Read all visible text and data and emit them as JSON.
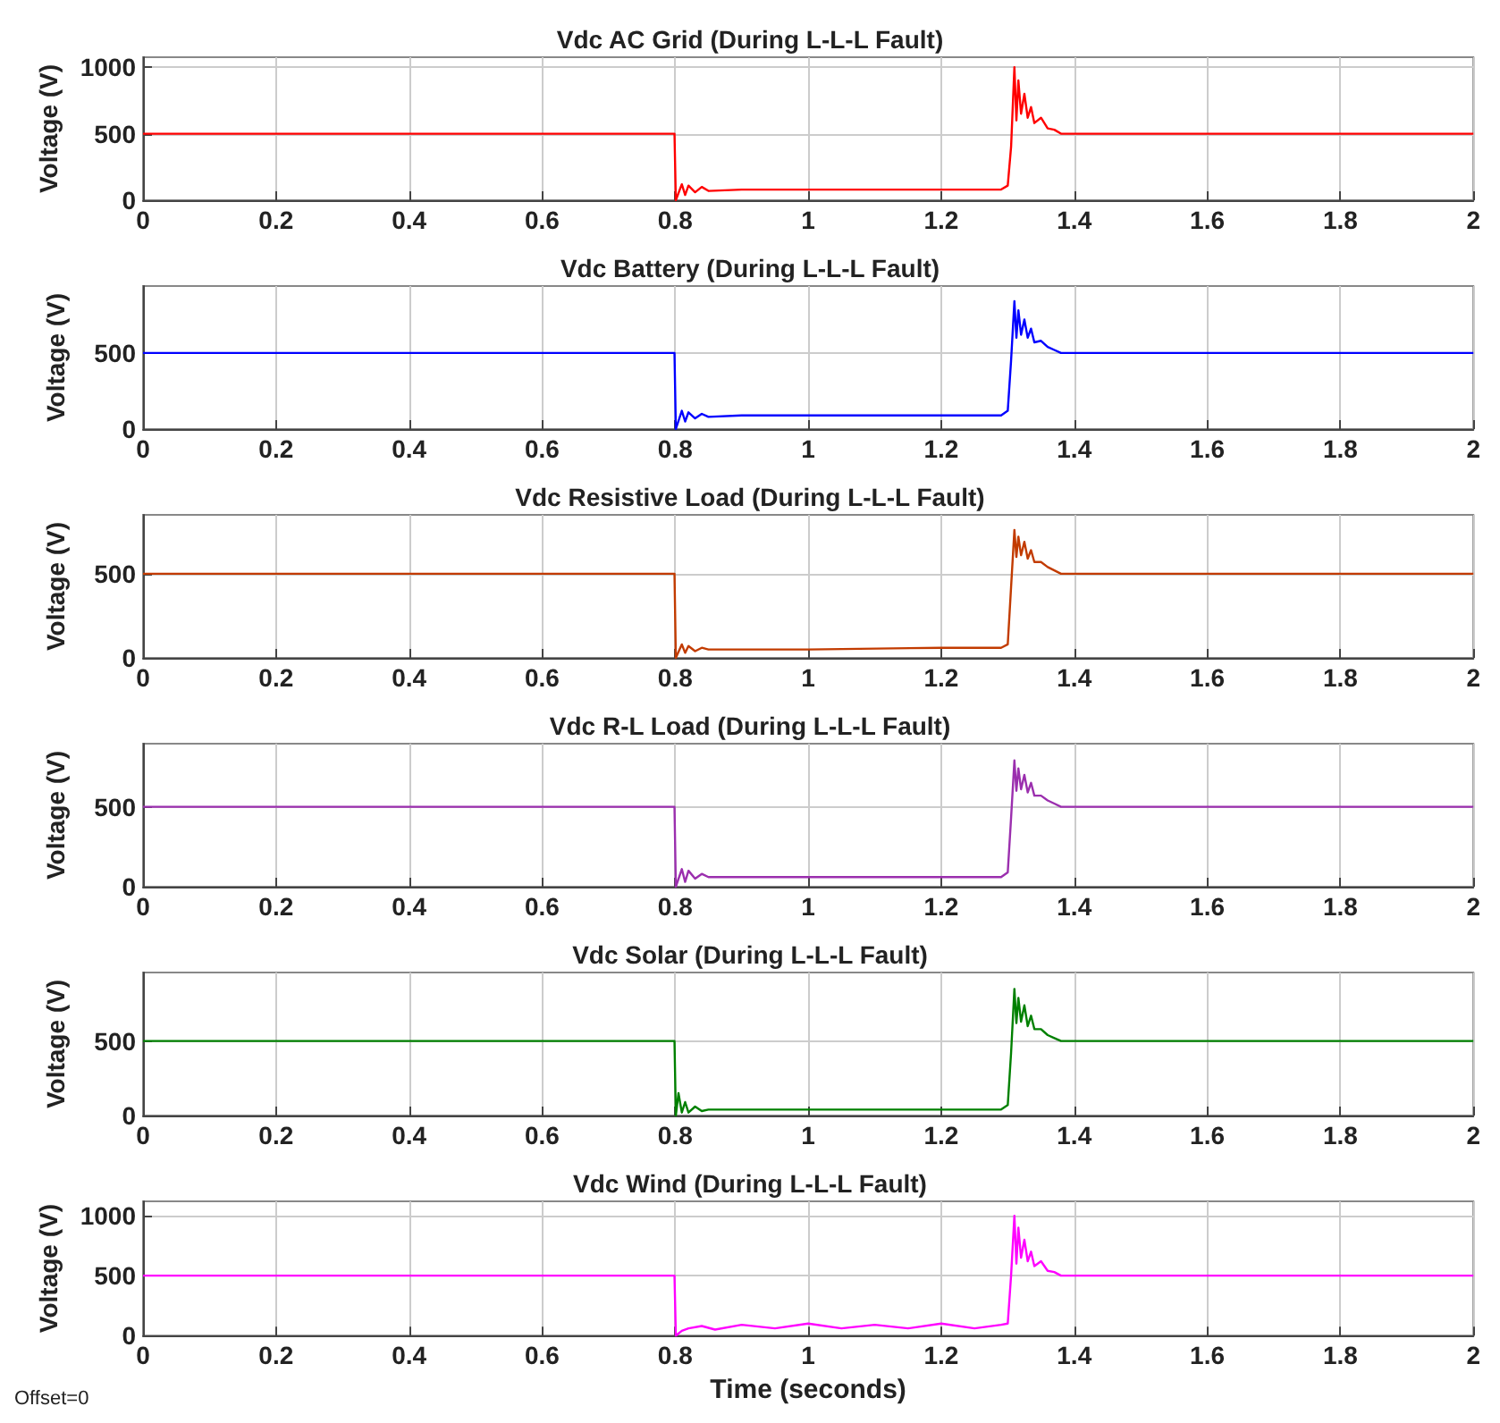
{
  "chart_data": [
    {
      "type": "line",
      "title": "Vdc AC Grid (During L-L-L Fault)",
      "ylabel": "Voltage (V)",
      "xlim": [
        0,
        2
      ],
      "xticks": [
        0,
        0.2,
        0.4,
        0.6,
        0.8,
        1,
        1.2,
        1.4,
        1.6,
        1.8,
        2
      ],
      "ylim": [
        0,
        1075
      ],
      "yticks": [
        0,
        500,
        1000
      ],
      "grid": true,
      "x": [
        0,
        0.799,
        0.801,
        0.81,
        0.815,
        0.82,
        0.83,
        0.84,
        0.85,
        0.9,
        1,
        1.2,
        1.29,
        1.3,
        1.305,
        1.31,
        1.313,
        1.316,
        1.32,
        1.325,
        1.33,
        1.335,
        1.34,
        1.35,
        1.36,
        1.37,
        1.38,
        1.4,
        2
      ],
      "series": [
        {
          "color": "#ff0000",
          "values": [
            500,
            500,
            0,
            120,
            40,
            110,
            60,
            100,
            70,
            80,
            80,
            80,
            80,
            110,
            400,
            1000,
            600,
            900,
            650,
            800,
            620,
            700,
            580,
            620,
            540,
            530,
            500,
            500,
            500
          ]
        }
      ]
    },
    {
      "type": "line",
      "title": "Vdc Battery (During L-L-L Fault)",
      "ylabel": "Voltage (V)",
      "xlim": [
        0,
        2
      ],
      "xticks": [
        0,
        0.2,
        0.4,
        0.6,
        0.8,
        1,
        1.2,
        1.4,
        1.6,
        1.8,
        2
      ],
      "ylim": [
        0,
        940
      ],
      "yticks": [
        0,
        500
      ],
      "grid": true,
      "x": [
        0,
        0.799,
        0.801,
        0.81,
        0.815,
        0.82,
        0.83,
        0.84,
        0.85,
        0.9,
        1,
        1.2,
        1.29,
        1.3,
        1.305,
        1.31,
        1.313,
        1.316,
        1.32,
        1.325,
        1.33,
        1.335,
        1.34,
        1.35,
        1.36,
        1.37,
        1.38,
        1.4,
        2
      ],
      "series": [
        {
          "color": "#0000ff",
          "values": [
            500,
            500,
            0,
            120,
            50,
            110,
            70,
            100,
            80,
            90,
            90,
            90,
            90,
            120,
            450,
            840,
            600,
            780,
            620,
            720,
            600,
            660,
            570,
            580,
            540,
            520,
            500,
            500,
            500
          ]
        }
      ]
    },
    {
      "type": "line",
      "title": "Vdc Resistive Load (During L-L-L Fault)",
      "ylabel": "Voltage (V)",
      "xlim": [
        0,
        2
      ],
      "xticks": [
        0,
        0.2,
        0.4,
        0.6,
        0.8,
        1,
        1.2,
        1.4,
        1.6,
        1.8,
        2
      ],
      "ylim": [
        0,
        850
      ],
      "yticks": [
        0,
        500
      ],
      "grid": true,
      "x": [
        0,
        0.799,
        0.801,
        0.81,
        0.815,
        0.82,
        0.83,
        0.84,
        0.85,
        0.9,
        1,
        1.2,
        1.29,
        1.3,
        1.305,
        1.31,
        1.313,
        1.316,
        1.32,
        1.325,
        1.33,
        1.335,
        1.34,
        1.35,
        1.36,
        1.37,
        1.38,
        1.4,
        2
      ],
      "series": [
        {
          "color": "#c23b00",
          "values": [
            500,
            500,
            0,
            80,
            30,
            70,
            40,
            60,
            50,
            50,
            50,
            60,
            60,
            80,
            420,
            760,
            600,
            720,
            610,
            690,
            590,
            640,
            570,
            570,
            540,
            520,
            500,
            500,
            500
          ]
        }
      ]
    },
    {
      "type": "line",
      "title": "Vdc R-L Load (During L-L-L Fault)",
      "ylabel": "Voltage (V)",
      "xlim": [
        0,
        2
      ],
      "xticks": [
        0,
        0.2,
        0.4,
        0.6,
        0.8,
        1,
        1.2,
        1.4,
        1.6,
        1.8,
        2
      ],
      "ylim": [
        0,
        895
      ],
      "yticks": [
        0,
        500
      ],
      "grid": true,
      "x": [
        0,
        0.799,
        0.801,
        0.81,
        0.815,
        0.82,
        0.83,
        0.84,
        0.85,
        0.9,
        1,
        1.2,
        1.29,
        1.3,
        1.305,
        1.31,
        1.313,
        1.316,
        1.32,
        1.325,
        1.33,
        1.335,
        1.34,
        1.35,
        1.36,
        1.37,
        1.38,
        1.4,
        2
      ],
      "series": [
        {
          "color": "#9b2fae",
          "values": [
            500,
            500,
            0,
            110,
            30,
            100,
            50,
            80,
            60,
            60,
            60,
            60,
            60,
            90,
            430,
            790,
            600,
            740,
            610,
            700,
            590,
            650,
            570,
            570,
            540,
            520,
            500,
            500,
            500
          ]
        }
      ]
    },
    {
      "type": "line",
      "title": "Vdc Solar (During L-L-L Fault)",
      "ylabel": "Voltage (V)",
      "xlim": [
        0,
        2
      ],
      "xticks": [
        0,
        0.2,
        0.4,
        0.6,
        0.8,
        1,
        1.2,
        1.4,
        1.6,
        1.8,
        2
      ],
      "ylim": [
        0,
        960
      ],
      "yticks": [
        0,
        500
      ],
      "grid": true,
      "x": [
        0,
        0.799,
        0.801,
        0.805,
        0.81,
        0.815,
        0.82,
        0.83,
        0.84,
        0.85,
        0.9,
        1,
        1.2,
        1.29,
        1.3,
        1.305,
        1.31,
        1.313,
        1.316,
        1.32,
        1.325,
        1.33,
        1.335,
        1.34,
        1.35,
        1.36,
        1.37,
        1.38,
        1.4,
        2
      ],
      "series": [
        {
          "color": "#008000",
          "values": [
            500,
            500,
            0,
            150,
            20,
            90,
            20,
            60,
            30,
            40,
            40,
            40,
            40,
            40,
            70,
            420,
            850,
            620,
            790,
            630,
            740,
            600,
            670,
            580,
            580,
            540,
            520,
            500,
            500,
            500
          ]
        }
      ]
    },
    {
      "type": "line",
      "title": "Vdc Wind (During L-L-L Fault)",
      "xlabel": "Time (seconds)",
      "ylabel": "Voltage (V)",
      "xlim": [
        0,
        2
      ],
      "xticks": [
        0,
        0.2,
        0.4,
        0.6,
        0.8,
        1,
        1.2,
        1.4,
        1.6,
        1.8,
        2
      ],
      "ylim": [
        0,
        1120
      ],
      "yticks": [
        0,
        500,
        1000
      ],
      "grid": true,
      "annotations": [
        "Offset=0"
      ],
      "x": [
        0,
        0.799,
        0.801,
        0.81,
        0.82,
        0.84,
        0.86,
        0.9,
        0.95,
        1,
        1.05,
        1.1,
        1.15,
        1.2,
        1.25,
        1.29,
        1.3,
        1.305,
        1.31,
        1.313,
        1.316,
        1.32,
        1.325,
        1.33,
        1.335,
        1.34,
        1.35,
        1.36,
        1.37,
        1.38,
        1.4,
        2
      ],
      "series": [
        {
          "color": "#ff00ff",
          "values": [
            500,
            500,
            0,
            40,
            60,
            80,
            50,
            90,
            60,
            100,
            60,
            90,
            60,
            100,
            60,
            90,
            100,
            500,
            1000,
            600,
            900,
            650,
            800,
            620,
            700,
            580,
            620,
            540,
            530,
            500,
            500,
            500
          ]
        }
      ]
    }
  ]
}
